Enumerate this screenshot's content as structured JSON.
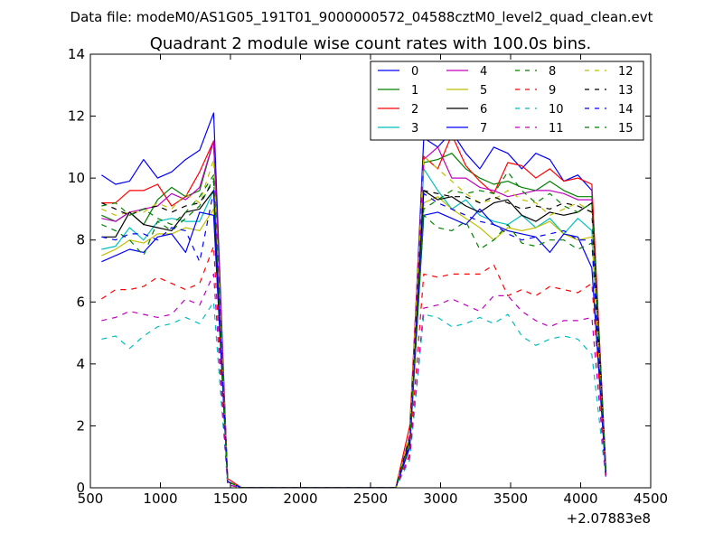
{
  "suptitle": "Data file: modeM0/AS1G05_191T01_9000000572_04588cztM0_level2_quad_clean.evt",
  "chart_data": {
    "type": "line",
    "title": "Quadrant 2 module wise count rates with 100.0s bins.",
    "xlabel": "",
    "ylabel": "",
    "x_offset_label": "+2.07883e8",
    "xlim": [
      500,
      4500
    ],
    "ylim": [
      0,
      14
    ],
    "x_ticks": [
      "500",
      "1000",
      "1500",
      "2000",
      "2500",
      "3000",
      "3500",
      "4000",
      "4500"
    ],
    "y_ticks": [
      "0",
      "2",
      "4",
      "6",
      "8",
      "10",
      "12",
      "14"
    ],
    "legend_location": "top-right",
    "x": [
      580,
      680,
      780,
      880,
      980,
      1080,
      1180,
      1280,
      1380,
      1480,
      1580,
      1680,
      1780,
      1880,
      1980,
      2080,
      2180,
      2280,
      2380,
      2480,
      2580,
      2680,
      2780,
      2880,
      2980,
      3080,
      3180,
      3280,
      3380,
      3480,
      3580,
      3680,
      3780,
      3880,
      3980,
      4080,
      4180
    ],
    "series": [
      {
        "name": "0",
        "color": "#0000ff",
        "dash": "solid",
        "values": [
          10.1,
          9.8,
          9.9,
          10.6,
          10.0,
          10.2,
          10.6,
          10.9,
          12.1,
          0.2,
          0.0,
          0.0,
          0.0,
          0.0,
          0.0,
          0.0,
          0.0,
          0.0,
          0.0,
          0.0,
          0.0,
          0.0,
          1.6,
          11.3,
          11.0,
          11.5,
          10.8,
          10.3,
          11.0,
          10.8,
          10.3,
          10.8,
          10.6,
          9.9,
          10.1,
          9.6,
          0.6
        ]
      },
      {
        "name": "1",
        "color": "#008000",
        "dash": "solid",
        "values": [
          8.8,
          8.6,
          8.9,
          8.5,
          9.3,
          9.7,
          9.4,
          9.6,
          11.2,
          0.2,
          0.0,
          0.0,
          0.0,
          0.0,
          0.0,
          0.0,
          0.0,
          0.0,
          0.0,
          0.0,
          0.0,
          0.0,
          1.5,
          10.5,
          10.6,
          10.8,
          10.3,
          10.0,
          9.8,
          9.9,
          9.7,
          9.6,
          9.9,
          9.6,
          9.4,
          9.4,
          0.5
        ]
      },
      {
        "name": "2",
        "color": "#ff0000",
        "dash": "solid",
        "values": [
          9.2,
          9.2,
          9.6,
          9.6,
          9.8,
          9.1,
          9.4,
          10.2,
          11.2,
          0.3,
          0.0,
          0.0,
          0.0,
          0.0,
          0.0,
          0.0,
          0.0,
          0.0,
          0.0,
          0.0,
          0.0,
          0.0,
          2.0,
          10.7,
          10.3,
          11.4,
          10.4,
          9.9,
          9.5,
          10.5,
          10.4,
          10.0,
          10.3,
          9.9,
          10.0,
          9.8,
          0.5
        ]
      },
      {
        "name": "3",
        "color": "#00bfbf",
        "dash": "solid",
        "values": [
          7.7,
          7.8,
          8.4,
          8.0,
          8.6,
          8.7,
          8.6,
          8.6,
          9.6,
          0.2,
          0.0,
          0.0,
          0.0,
          0.0,
          0.0,
          0.0,
          0.0,
          0.0,
          0.0,
          0.0,
          0.0,
          0.0,
          1.5,
          10.3,
          9.6,
          9.0,
          9.3,
          8.8,
          8.6,
          8.5,
          8.8,
          8.4,
          8.7,
          8.2,
          8.7,
          8.3,
          0.5
        ]
      },
      {
        "name": "4",
        "color": "#bf00bf",
        "dash": "solid",
        "values": [
          8.7,
          8.6,
          8.9,
          9.0,
          9.1,
          9.5,
          9.3,
          9.7,
          11.2,
          0.2,
          0.0,
          0.0,
          0.0,
          0.0,
          0.0,
          0.0,
          0.0,
          0.0,
          0.0,
          0.0,
          0.0,
          0.0,
          1.7,
          10.6,
          11.0,
          10.0,
          10.0,
          9.7,
          9.6,
          9.4,
          9.5,
          9.6,
          9.6,
          9.5,
          9.3,
          9.3,
          0.5
        ]
      },
      {
        "name": "5",
        "color": "#bfbf00",
        "dash": "solid",
        "values": [
          7.5,
          7.7,
          8.0,
          7.9,
          8.2,
          8.2,
          8.4,
          8.3,
          9.0,
          0.2,
          0.0,
          0.0,
          0.0,
          0.0,
          0.0,
          0.0,
          0.0,
          0.0,
          0.0,
          0.0,
          0.0,
          0.0,
          1.4,
          9.2,
          9.4,
          9.0,
          8.7,
          8.4,
          8.0,
          8.4,
          8.3,
          8.4,
          8.6,
          8.2,
          8.0,
          8.1,
          0.5
        ]
      },
      {
        "name": "6",
        "color": "#000000",
        "dash": "solid",
        "values": [
          8.1,
          8.1,
          8.9,
          8.5,
          8.4,
          8.3,
          8.9,
          9.0,
          9.6,
          0.2,
          0.0,
          0.0,
          0.0,
          0.0,
          0.0,
          0.0,
          0.0,
          0.0,
          0.0,
          0.0,
          0.0,
          0.0,
          1.5,
          9.6,
          9.3,
          9.4,
          9.1,
          8.9,
          9.2,
          9.3,
          8.8,
          8.6,
          8.9,
          8.8,
          8.9,
          9.2,
          0.5
        ]
      },
      {
        "name": "7",
        "color": "#0000ff",
        "dash": "solid",
        "values": [
          7.3,
          7.5,
          7.7,
          7.6,
          8.1,
          8.2,
          7.6,
          8.9,
          8.8,
          0.2,
          0.0,
          0.0,
          0.0,
          0.0,
          0.0,
          0.0,
          0.0,
          0.0,
          0.0,
          0.0,
          0.0,
          0.0,
          1.3,
          8.8,
          8.9,
          8.7,
          8.5,
          9.0,
          8.5,
          8.3,
          8.2,
          8.1,
          7.6,
          8.2,
          8.1,
          7.1,
          0.4
        ]
      },
      {
        "name": "8",
        "color": "#008000",
        "dash": "dash",
        "values": [
          8.5,
          8.3,
          8.0,
          7.5,
          8.6,
          8.3,
          8.7,
          9.1,
          10.0,
          0.2,
          0.0,
          0.0,
          0.0,
          0.0,
          0.0,
          0.0,
          0.0,
          0.0,
          0.0,
          0.0,
          0.0,
          0.0,
          1.4,
          8.8,
          8.4,
          8.3,
          8.6,
          7.7,
          8.0,
          8.5,
          7.9,
          7.8,
          8.0,
          8.0,
          7.7,
          7.9,
          0.4
        ]
      },
      {
        "name": "9",
        "color": "#ff0000",
        "dash": "dash",
        "values": [
          6.1,
          6.4,
          6.4,
          6.5,
          6.8,
          6.6,
          6.4,
          6.6,
          7.8,
          0.1,
          0.0,
          0.0,
          0.0,
          0.0,
          0.0,
          0.0,
          0.0,
          0.0,
          0.0,
          0.0,
          0.0,
          0.0,
          1.1,
          6.9,
          6.8,
          6.9,
          6.9,
          6.9,
          7.2,
          6.2,
          6.4,
          6.2,
          6.5,
          6.4,
          6.3,
          6.6,
          0.4
        ]
      },
      {
        "name": "10",
        "color": "#00bfbf",
        "dash": "dash",
        "values": [
          4.8,
          4.9,
          4.5,
          4.9,
          5.2,
          5.3,
          5.5,
          5.3,
          6.0,
          0.1,
          0.0,
          0.0,
          0.0,
          0.0,
          0.0,
          0.0,
          0.0,
          0.0,
          0.0,
          0.0,
          0.0,
          0.0,
          0.9,
          5.6,
          5.5,
          5.2,
          5.3,
          5.5,
          5.3,
          5.6,
          4.9,
          4.6,
          4.8,
          4.9,
          4.8,
          4.3,
          0.3
        ]
      },
      {
        "name": "11",
        "color": "#bf00bf",
        "dash": "dash",
        "values": [
          5.4,
          5.5,
          5.7,
          5.6,
          5.5,
          5.6,
          6.1,
          5.9,
          6.9,
          0.1,
          0.0,
          0.0,
          0.0,
          0.0,
          0.0,
          0.0,
          0.0,
          0.0,
          0.0,
          0.0,
          0.0,
          0.0,
          1.0,
          5.8,
          5.9,
          6.1,
          5.9,
          5.7,
          6.2,
          6.2,
          5.7,
          5.4,
          5.2,
          5.4,
          5.4,
          5.5,
          0.3
        ]
      },
      {
        "name": "12",
        "color": "#bfbf00",
        "dash": "dash",
        "values": [
          9.0,
          8.8,
          8.9,
          8.9,
          9.2,
          9.0,
          9.5,
          9.2,
          10.6,
          0.2,
          0.0,
          0.0,
          0.0,
          0.0,
          0.0,
          0.0,
          0.0,
          0.0,
          0.0,
          0.0,
          0.0,
          0.0,
          1.7,
          10.7,
          10.3,
          9.9,
          9.5,
          9.2,
          9.3,
          9.6,
          9.3,
          9.2,
          8.8,
          9.0,
          9.2,
          8.9,
          0.5
        ]
      },
      {
        "name": "13",
        "color": "#000000",
        "dash": "dash",
        "values": [
          9.2,
          9.0,
          8.8,
          9.0,
          9.1,
          8.9,
          9.1,
          9.2,
          9.9,
          0.2,
          0.0,
          0.0,
          0.0,
          0.0,
          0.0,
          0.0,
          0.0,
          0.0,
          0.0,
          0.0,
          0.0,
          0.0,
          1.6,
          9.6,
          9.5,
          9.4,
          9.4,
          9.2,
          9.4,
          9.2,
          9.0,
          9.1,
          9.0,
          9.2,
          9.1,
          8.9,
          0.5
        ]
      },
      {
        "name": "14",
        "color": "#0000ff",
        "dash": "dash",
        "values": [
          8.1,
          8.0,
          8.2,
          8.2,
          8.0,
          8.4,
          8.3,
          7.3,
          9.6,
          0.2,
          0.0,
          0.0,
          0.0,
          0.0,
          0.0,
          0.0,
          0.0,
          0.0,
          0.0,
          0.0,
          0.0,
          0.0,
          1.4,
          9.5,
          9.2,
          9.0,
          8.8,
          8.6,
          8.5,
          8.2,
          8.0,
          8.1,
          8.2,
          8.3,
          8.0,
          8.0,
          0.4
        ]
      },
      {
        "name": "15",
        "color": "#008000",
        "dash": "dash",
        "values": [
          9.1,
          9.2,
          8.8,
          9.0,
          8.7,
          8.5,
          8.9,
          9.4,
          10.1,
          0.2,
          0.0,
          0.0,
          0.0,
          0.0,
          0.0,
          0.0,
          0.0,
          0.0,
          0.0,
          0.0,
          0.0,
          0.0,
          1.5,
          9.0,
          9.3,
          9.6,
          9.5,
          9.6,
          9.5,
          10.2,
          9.6,
          9.2,
          9.5,
          9.1,
          8.9,
          9.2,
          0.5
        ]
      }
    ]
  }
}
